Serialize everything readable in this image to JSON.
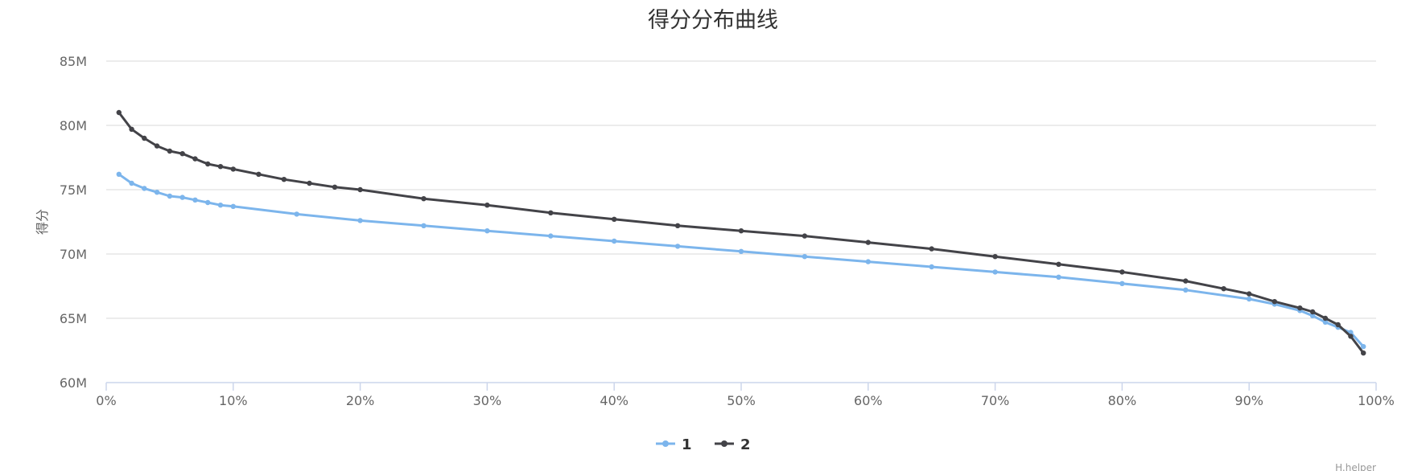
{
  "chart_data": {
    "type": "line",
    "title": "得分分布曲线",
    "ylabel": "得分",
    "xlabel": "",
    "xlim": [
      0,
      100
    ],
    "ylim": [
      60000000,
      85000000
    ],
    "x_ticks": [
      "0%",
      "10%",
      "20%",
      "30%",
      "40%",
      "50%",
      "60%",
      "70%",
      "80%",
      "90%",
      "100%"
    ],
    "y_ticks": [
      "60M",
      "65M",
      "70M",
      "75M",
      "80M",
      "85M"
    ],
    "grid": true,
    "legend_position": "bottom-center",
    "series": [
      {
        "name": "1",
        "color": "#7cb5ec",
        "points": [
          [
            1,
            76.2
          ],
          [
            2,
            75.5
          ],
          [
            3,
            75.1
          ],
          [
            4,
            74.8
          ],
          [
            5,
            74.5
          ],
          [
            6,
            74.4
          ],
          [
            7,
            74.2
          ],
          [
            8,
            74.0
          ],
          [
            9,
            73.8
          ],
          [
            10,
            73.7
          ],
          [
            15,
            73.1
          ],
          [
            20,
            72.6
          ],
          [
            25,
            72.2
          ],
          [
            30,
            71.8
          ],
          [
            35,
            71.4
          ],
          [
            40,
            71.0
          ],
          [
            45,
            70.6
          ],
          [
            50,
            70.2
          ],
          [
            55,
            69.8
          ],
          [
            60,
            69.4
          ],
          [
            65,
            69.0
          ],
          [
            70,
            68.6
          ],
          [
            75,
            68.2
          ],
          [
            80,
            67.7
          ],
          [
            85,
            67.2
          ],
          [
            90,
            66.5
          ],
          [
            92,
            66.1
          ],
          [
            94,
            65.6
          ],
          [
            95,
            65.2
          ],
          [
            96,
            64.7
          ],
          [
            97,
            64.3
          ],
          [
            98,
            63.9
          ],
          [
            99,
            62.8
          ]
        ]
      },
      {
        "name": "2",
        "color": "#434348",
        "points": [
          [
            1,
            81.0
          ],
          [
            2,
            79.7
          ],
          [
            3,
            79.0
          ],
          [
            4,
            78.4
          ],
          [
            5,
            78.0
          ],
          [
            6,
            77.8
          ],
          [
            7,
            77.4
          ],
          [
            8,
            77.0
          ],
          [
            9,
            76.8
          ],
          [
            10,
            76.6
          ],
          [
            12,
            76.2
          ],
          [
            14,
            75.8
          ],
          [
            16,
            75.5
          ],
          [
            18,
            75.2
          ],
          [
            20,
            75.0
          ],
          [
            25,
            74.3
          ],
          [
            30,
            73.8
          ],
          [
            35,
            73.2
          ],
          [
            40,
            72.7
          ],
          [
            45,
            72.2
          ],
          [
            50,
            71.8
          ],
          [
            55,
            71.4
          ],
          [
            60,
            70.9
          ],
          [
            65,
            70.4
          ],
          [
            70,
            69.8
          ],
          [
            75,
            69.2
          ],
          [
            80,
            68.6
          ],
          [
            85,
            67.9
          ],
          [
            88,
            67.3
          ],
          [
            90,
            66.9
          ],
          [
            92,
            66.3
          ],
          [
            94,
            65.8
          ],
          [
            95,
            65.5
          ],
          [
            96,
            65.0
          ],
          [
            97,
            64.5
          ],
          [
            98,
            63.6
          ],
          [
            99,
            62.3
          ]
        ]
      }
    ]
  },
  "credit": "H.helper"
}
